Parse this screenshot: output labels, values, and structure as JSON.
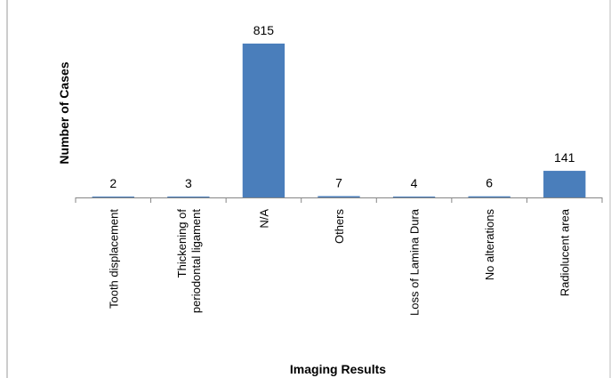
{
  "chart_data": {
    "type": "bar",
    "title": "",
    "xlabel": "Imaging Results",
    "ylabel": "Number of Cases",
    "categories": [
      "Tooth displacement",
      "Thickening of periodontal ligament",
      "N/A",
      "Others",
      "Loss of Lamina Dura",
      "No alterations",
      "Radiolucent area"
    ],
    "category_lines": [
      [
        "Tooth displacement"
      ],
      [
        "Thickening of",
        "periodontal ligament"
      ],
      [
        "N/A"
      ],
      [
        "Others"
      ],
      [
        "Loss of Lamina Dura"
      ],
      [
        "No alterations"
      ],
      [
        "Radiolucent area"
      ]
    ],
    "values": [
      2,
      3,
      815,
      7,
      4,
      6,
      141
    ],
    "value_labels": [
      "2",
      "3",
      "815",
      "7",
      "4",
      "6",
      "141"
    ],
    "ylim": [
      0,
      815
    ],
    "grid": false,
    "legend": "none",
    "bar_color": "#4a7ebb",
    "axis_color": "#868686"
  }
}
